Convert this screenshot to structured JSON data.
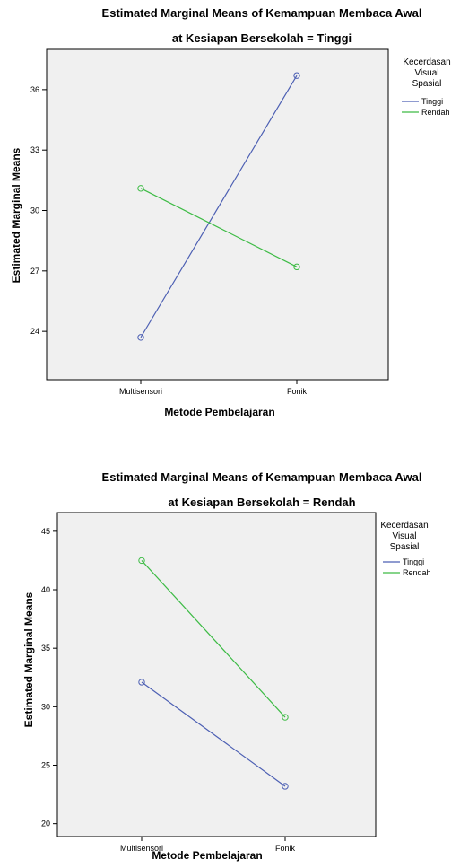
{
  "chart_data": [
    {
      "type": "line",
      "title": "Estimated Marginal Means of Kemampuan Membaca Awal",
      "subtitle": "at Kesiapan Bersekolah = Tinggi",
      "xlabel": "Metode Pembelajaran",
      "ylabel": "Estimated Marginal Means",
      "categories": [
        "Multisensori",
        "Fonik"
      ],
      "ylim": [
        21.6,
        38.0
      ],
      "yticks": [
        24,
        27,
        30,
        33,
        36
      ],
      "legend": {
        "title": [
          "Kecerdasan",
          "Visual",
          "Spasial"
        ],
        "placement": "right"
      },
      "series": [
        {
          "name": "Tinggi",
          "values": [
            23.7,
            36.7
          ],
          "color": "#4c5fb3"
        },
        {
          "name": "Rendah",
          "values": [
            31.1,
            27.2
          ],
          "color": "#3dbb45"
        }
      ]
    },
    {
      "type": "line",
      "title": "Estimated Marginal Means of Kemampuan Membaca Awal",
      "subtitle": "at Kesiapan Bersekolah = Rendah",
      "xlabel": "Metode Pembelajaran",
      "ylabel": "Estimated Marginal Means",
      "categories": [
        "Multisensori",
        "Fonik"
      ],
      "ylim": [
        18.9,
        46.6
      ],
      "yticks": [
        20,
        25,
        30,
        35,
        40,
        45
      ],
      "legend": {
        "title": [
          "Kecerdasan",
          "Visual",
          "Spasial"
        ],
        "placement": "right"
      },
      "series": [
        {
          "name": "Tinggi",
          "values": [
            32.1,
            23.2
          ],
          "color": "#4c5fb3"
        },
        {
          "name": "Rendah",
          "values": [
            42.5,
            29.1
          ],
          "color": "#3dbb45"
        }
      ]
    }
  ]
}
